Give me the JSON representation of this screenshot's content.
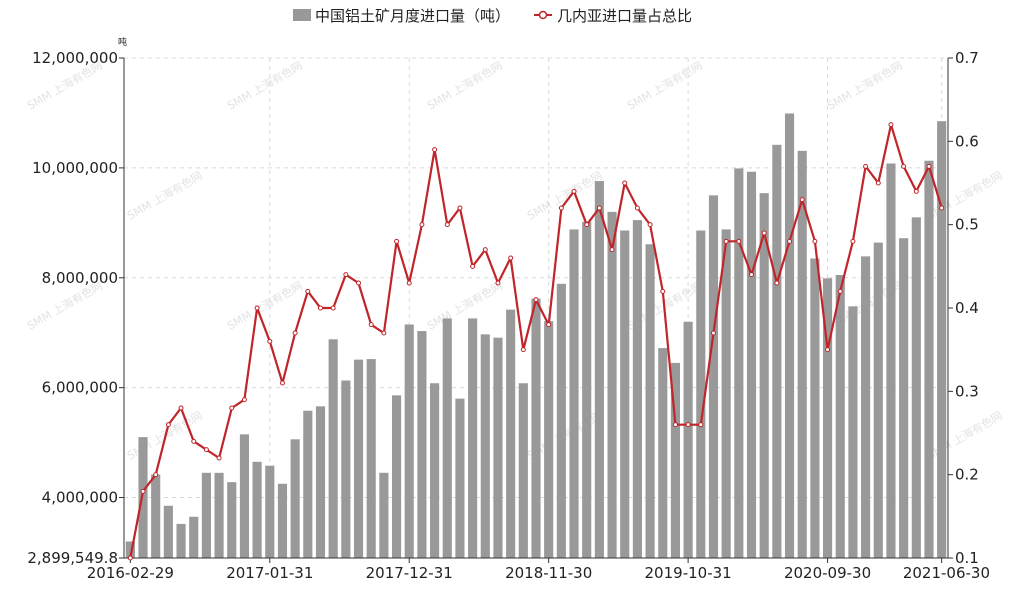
{
  "chart_data": {
    "type": "bar+line",
    "title": "",
    "y_left_unit": "吨",
    "y_left_ticks": [
      "2,899,549.8",
      "4,000,000",
      "6,000,000",
      "8,000,000",
      "10,000,000",
      "12,000,000"
    ],
    "y_left_lim": [
      2899549.8,
      12000000
    ],
    "y_right_ticks": [
      "0.1",
      "0.2",
      "0.3",
      "0.4",
      "0.5",
      "0.6",
      "0.7"
    ],
    "y_right_lim": [
      0.1,
      0.7
    ],
    "x_tick_labels": [
      "2016-02-29",
      "2017-01-31",
      "2017-12-31",
      "2018-11-30",
      "2019-10-31",
      "2020-09-30",
      "2021-06-30"
    ],
    "x_tick_index": [
      0,
      11,
      22,
      33,
      44,
      55,
      64
    ],
    "legend_position": "top",
    "watermark": "SMM 上海有色网",
    "categories": [
      "2016-02-29",
      "2016-03-31",
      "2016-04-30",
      "2016-05-31",
      "2016-06-30",
      "2016-07-31",
      "2016-08-31",
      "2016-09-30",
      "2016-10-31",
      "2016-11-30",
      "2016-12-31",
      "2017-01-31",
      "2017-02-28",
      "2017-03-31",
      "2017-04-30",
      "2017-05-31",
      "2017-06-30",
      "2017-07-31",
      "2017-08-31",
      "2017-09-30",
      "2017-10-31",
      "2017-11-30",
      "2017-12-31",
      "2018-01-31",
      "2018-02-28",
      "2018-03-31",
      "2018-04-30",
      "2018-05-31",
      "2018-06-30",
      "2018-07-31",
      "2018-08-31",
      "2018-09-30",
      "2018-10-31",
      "2018-11-30",
      "2018-12-31",
      "2019-01-31",
      "2019-02-28",
      "2019-03-31",
      "2019-04-30",
      "2019-05-31",
      "2019-06-30",
      "2019-07-31",
      "2019-08-31",
      "2019-09-30",
      "2019-10-31",
      "2019-11-30",
      "2019-12-31",
      "2020-01-31",
      "2020-02-29",
      "2020-03-31",
      "2020-04-30",
      "2020-05-31",
      "2020-06-30",
      "2020-07-31",
      "2020-08-31",
      "2020-09-30",
      "2020-10-31",
      "2020-11-30",
      "2020-12-31",
      "2021-01-31",
      "2021-02-28",
      "2021-03-31",
      "2021-04-30",
      "2021-05-31",
      "2021-06-30"
    ],
    "series": [
      {
        "name": "中国铝土矿月度进口量（吨）",
        "type": "bar",
        "axis": "left",
        "color": "#999999",
        "values": [
          3200000,
          5100000,
          4420000,
          3850000,
          3520000,
          3650000,
          4450000,
          4450000,
          4280000,
          5150000,
          4650000,
          4580000,
          4250000,
          5060000,
          5580000,
          5660000,
          6880000,
          6130000,
          6510000,
          6520000,
          4450000,
          5860000,
          7150000,
          7030000,
          6080000,
          7260000,
          5800000,
          7260000,
          6970000,
          6910000,
          7420000,
          6080000,
          7620000,
          7210000,
          7890000,
          8880000,
          9020000,
          9760000,
          9200000,
          8860000,
          9050000,
          8610000,
          6720000,
          6450000,
          7200000,
          8860000,
          9500000,
          8880000,
          9990000,
          9930000,
          9540000,
          10420000,
          10990000,
          10310000,
          8350000,
          7990000,
          8050000,
          7480000,
          8390000,
          8640000,
          10080000,
          8720000,
          9100000,
          10130000,
          10850000
        ]
      },
      {
        "name": "几内亚进口量占总比",
        "type": "line",
        "axis": "right",
        "color": "#c0252a",
        "values": [
          0.1,
          0.18,
          0.2,
          0.26,
          0.28,
          0.24,
          0.23,
          0.22,
          0.28,
          0.29,
          0.4,
          0.36,
          0.31,
          0.37,
          0.42,
          0.4,
          0.4,
          0.44,
          0.43,
          0.38,
          0.37,
          0.48,
          0.43,
          0.5,
          0.59,
          0.5,
          0.52,
          0.45,
          0.47,
          0.43,
          0.46,
          0.35,
          0.41,
          0.38,
          0.52,
          0.54,
          0.5,
          0.52,
          0.47,
          0.55,
          0.52,
          0.5,
          0.42,
          0.26,
          0.26,
          0.26,
          0.37,
          0.48,
          0.48,
          0.44,
          0.49,
          0.43,
          0.48,
          0.53,
          0.48,
          0.35,
          0.42,
          0.48,
          0.57,
          0.55,
          0.62,
          0.57,
          0.54,
          0.57,
          0.52
        ]
      }
    ]
  }
}
